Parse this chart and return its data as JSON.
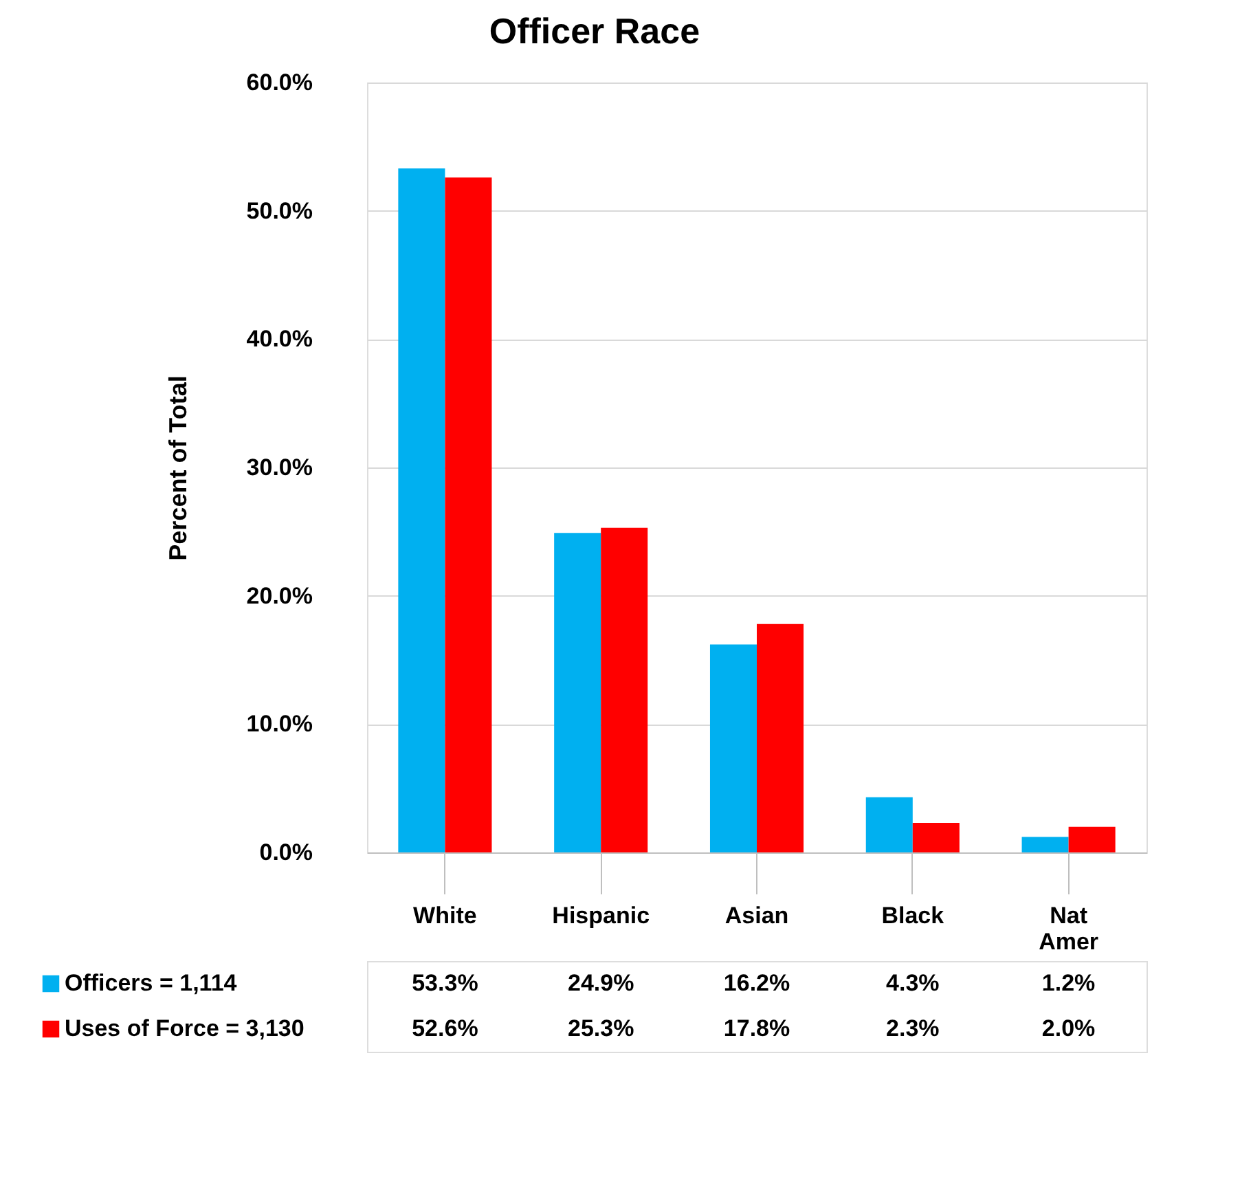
{
  "chart_data": {
    "type": "bar",
    "title": "Officer Race",
    "ylabel": "Percent of Total",
    "categories": [
      "White",
      "Hispanic",
      "Asian",
      "Black",
      "Nat Amer"
    ],
    "series": [
      {
        "name": "Officers = 1,114",
        "color": "#00b0f0",
        "values": [
          53.3,
          24.9,
          16.2,
          4.3,
          1.2
        ],
        "value_labels": [
          "53.3%",
          "24.9%",
          "16.2%",
          "4.3%",
          "1.2%"
        ]
      },
      {
        "name": "Uses of Force = 3,130",
        "color": "#ff0000",
        "values": [
          52.6,
          25.3,
          17.8,
          2.3,
          2.0
        ],
        "value_labels": [
          "52.6%",
          "25.3%",
          "17.8%",
          "2.3%",
          "2.0%"
        ]
      }
    ],
    "ylim": [
      0,
      60
    ],
    "yticks": [
      {
        "value": 0,
        "label": "0.0%"
      },
      {
        "value": 10,
        "label": "10.0%"
      },
      {
        "value": 20,
        "label": "20.0%"
      },
      {
        "value": 30,
        "label": "30.0%"
      },
      {
        "value": 40,
        "label": "40.0%"
      },
      {
        "value": 50,
        "label": "50.0%"
      },
      {
        "value": 60,
        "label": "60.0%"
      }
    ],
    "grid": "y",
    "legend": "bottom"
  }
}
